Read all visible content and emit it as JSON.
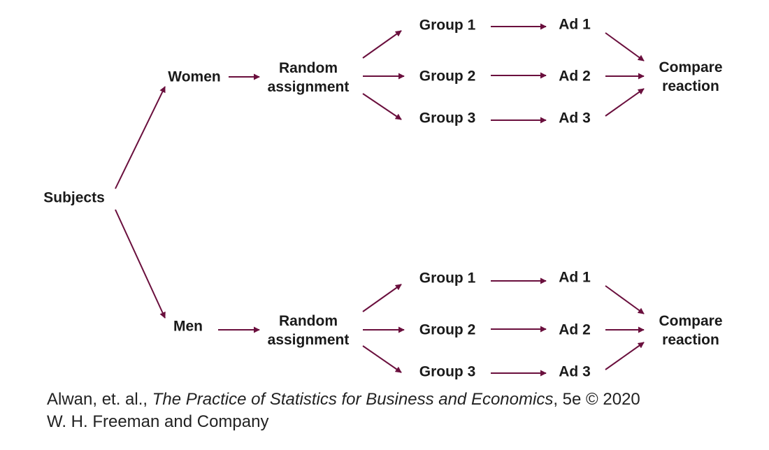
{
  "colors": {
    "arrow": "#6a0f3d",
    "text": "#1a1a1a",
    "caption": "#222222"
  },
  "nodes": {
    "subjects": "Subjects",
    "women": "Women",
    "men": "Men",
    "women_random": [
      "Random",
      "assignment"
    ],
    "men_random": [
      "Random",
      "assignment"
    ],
    "women_groups": [
      "Group 1",
      "Group 2",
      "Group 3"
    ],
    "men_groups": [
      "Group 1",
      "Group 2",
      "Group 3"
    ],
    "women_ads": [
      "Ad 1",
      "Ad 2",
      "Ad 3"
    ],
    "men_ads": [
      "Ad 1",
      "Ad 2",
      "Ad 3"
    ],
    "women_compare": [
      "Compare",
      "reaction"
    ],
    "men_compare": [
      "Compare",
      "reaction"
    ]
  },
  "caption": {
    "authors": "Alwan, et. al., ",
    "book_title": "The Practice of Statistics for Business and Economics",
    "edition": ", 5e © 2020",
    "publisher": "W. H. Freeman and Company"
  }
}
